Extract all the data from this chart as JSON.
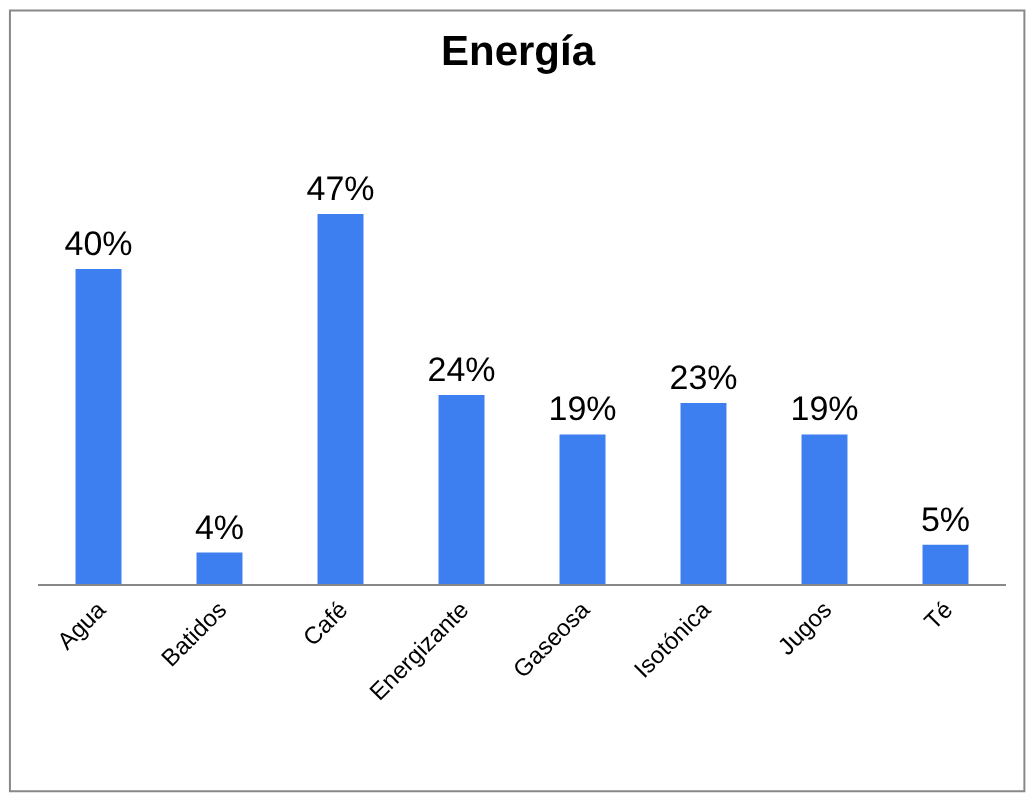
{
  "chart_data": {
    "type": "bar",
    "title": "Energía",
    "categories": [
      "Agua",
      "Batidos",
      "Café",
      "Energizante",
      "Gaseosa",
      "Isotónica",
      "Jugos",
      "Té"
    ],
    "values": [
      40,
      4,
      47,
      24,
      19,
      23,
      19,
      5
    ],
    "value_labels": [
      "40%",
      "4%",
      "47%",
      "24%",
      "19%",
      "23%",
      "19%",
      "5%"
    ],
    "color": "#3d7ff0",
    "legend": false
  }
}
